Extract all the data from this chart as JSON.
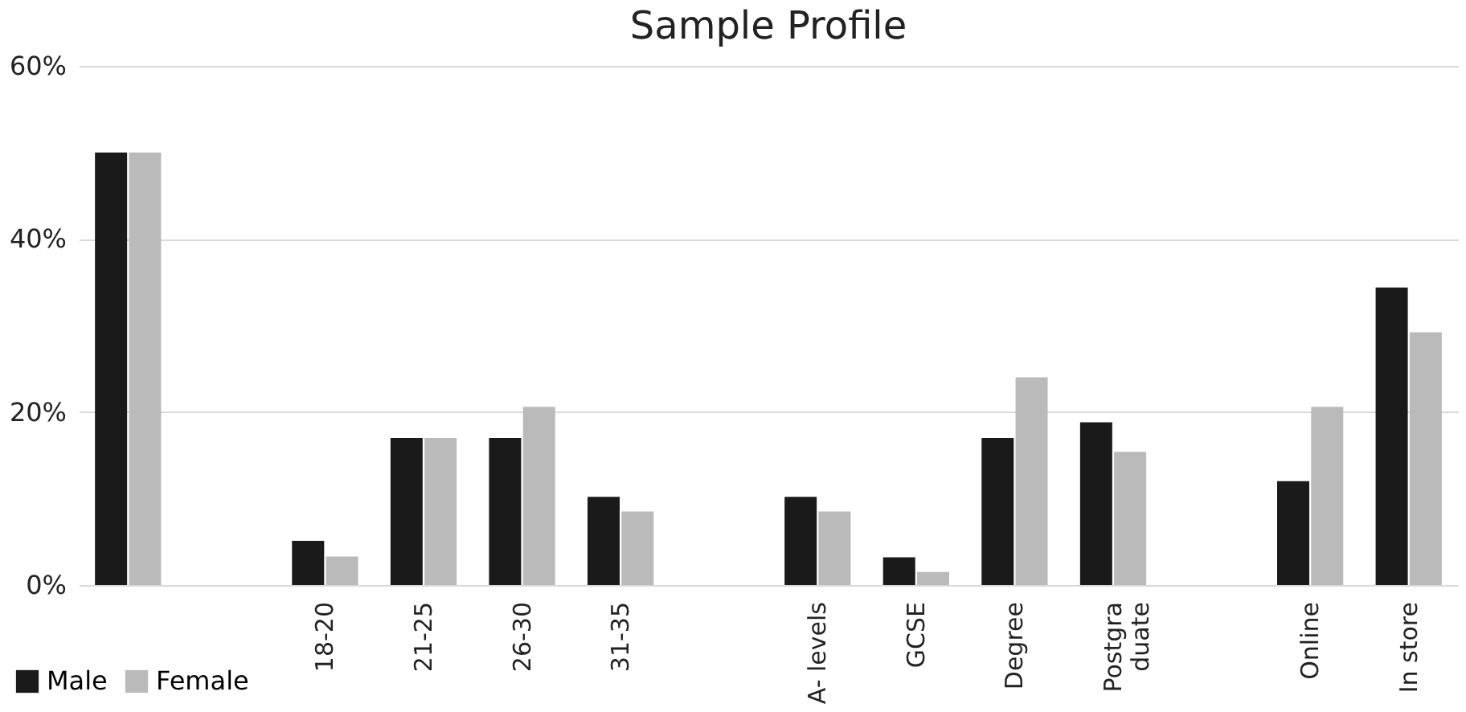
{
  "chart_data": {
    "type": "bar",
    "title": "Sample Profile",
    "categories": [
      null,
      null,
      "18-20",
      "21-25",
      "26-30",
      "31-35",
      null,
      "A- levels",
      "GCSE",
      "Degree",
      "Postgra\nduate",
      null,
      "Online",
      "In store"
    ],
    "series": [
      {
        "name": "Male",
        "color": "#1a1a1a",
        "values": [
          50,
          null,
          5.1,
          17,
          17,
          10.2,
          null,
          10.2,
          3.2,
          17,
          18.8,
          null,
          12,
          34.4
        ]
      },
      {
        "name": "Female",
        "color": "#bababa",
        "values": [
          50,
          null,
          3.3,
          17,
          20.6,
          8.5,
          null,
          8.5,
          1.5,
          24,
          15.4,
          null,
          20.6,
          29.2
        ]
      }
    ],
    "ylim": [
      0,
      60
    ],
    "yticks": [
      {
        "value": 0,
        "label": "0%"
      },
      {
        "value": 20,
        "label": "20%"
      },
      {
        "value": 40,
        "label": "40%"
      },
      {
        "value": 60,
        "label": "60%"
      }
    ],
    "grid": "y",
    "legend": "bottom left"
  }
}
